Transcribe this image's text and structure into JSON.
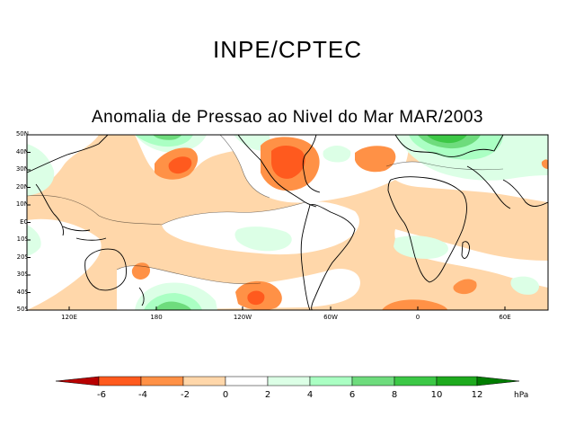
{
  "header": {
    "organization": "INPE/CPTEC"
  },
  "map": {
    "title": "Anomalia de Pressao ao Nivel do Mar MAR/2003",
    "lat_labels": [
      "50N",
      "40N",
      "30N",
      "20N",
      "10N",
      "EQ",
      "10S",
      "20S",
      "30S",
      "40S",
      "50S"
    ],
    "lon_labels": [
      "120E",
      "180",
      "120W",
      "60W",
      "0",
      "60E"
    ]
  },
  "colorbar": {
    "labels": [
      "-6",
      "-4",
      "-2",
      "0",
      "2",
      "4",
      "6",
      "8",
      "10",
      "12"
    ],
    "unit": "hPa",
    "colors": [
      "#b80000",
      "#ff5a1e",
      "#ff9146",
      "#ffd7aa",
      "#ffffff",
      "#dcffe6",
      "#aaffc3",
      "#6edc7d",
      "#3cc846",
      "#1eaa1e",
      "#007d00"
    ]
  }
}
